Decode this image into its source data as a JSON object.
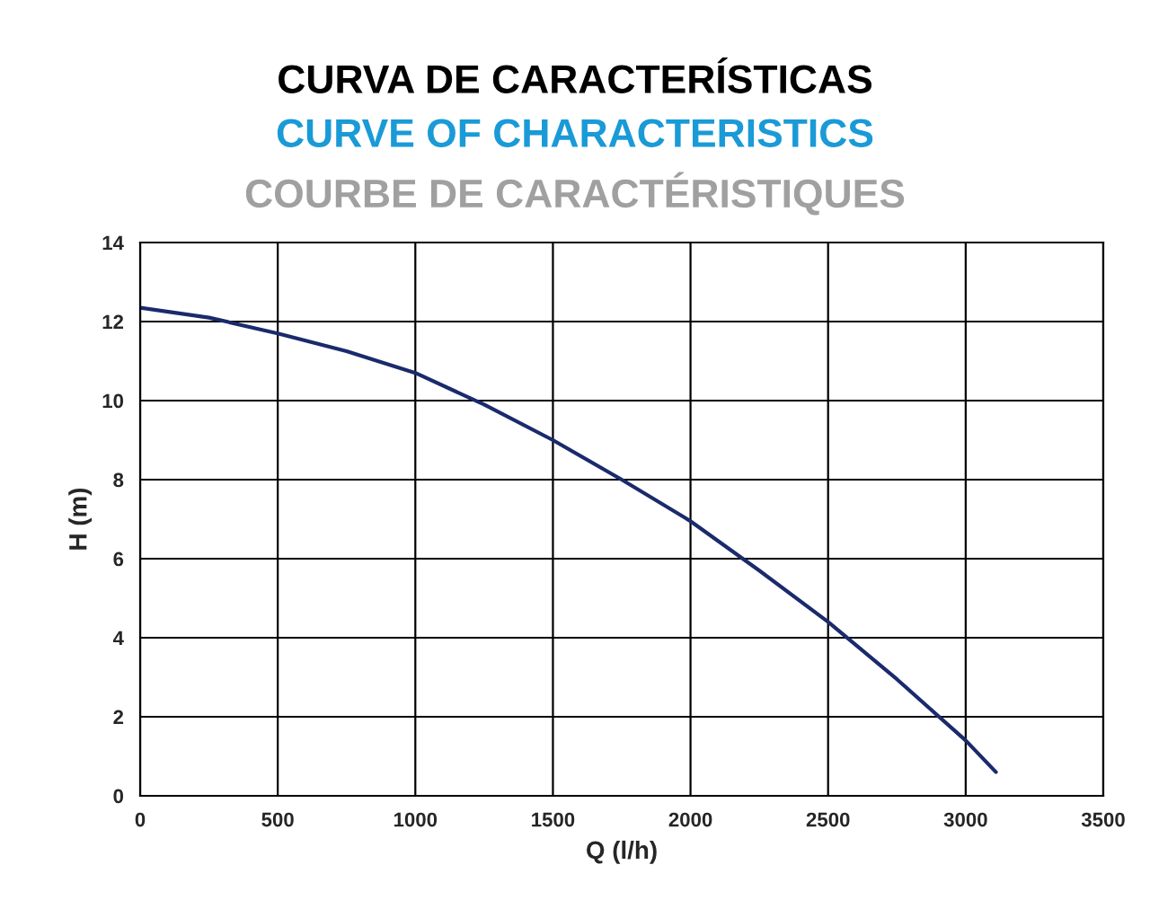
{
  "chart_data": {
    "type": "line",
    "title": "CURVA DE CARACTERÍSTICAS",
    "subtitle": "CURVE OF CHARACTERISTICS",
    "annotations": [
      "COURBE DE CARACTÉRISTIQUES"
    ],
    "xlabel": "Q (l/h)",
    "ylabel": "H (m)",
    "x": [
      0,
      250,
      500,
      750,
      1000,
      1250,
      1500,
      1750,
      2000,
      2250,
      2500,
      2750,
      3000,
      3110
    ],
    "series": [
      {
        "color": "#1a2a6c",
        "values": [
          12.35,
          12.1,
          11.7,
          11.25,
          10.7,
          9.9,
          9.0,
          8.0,
          6.95,
          5.7,
          4.4,
          2.95,
          1.4,
          0.6
        ]
      }
    ],
    "xlim": [
      0,
      3500
    ],
    "xticks": [
      0,
      500,
      1000,
      1500,
      2000,
      2500,
      3000,
      3500
    ],
    "ylim": [
      0,
      14
    ],
    "yticks": [
      0,
      2,
      4,
      6,
      8,
      10,
      12,
      14
    ],
    "grid": true,
    "marker": "none",
    "line_style": "solid"
  }
}
